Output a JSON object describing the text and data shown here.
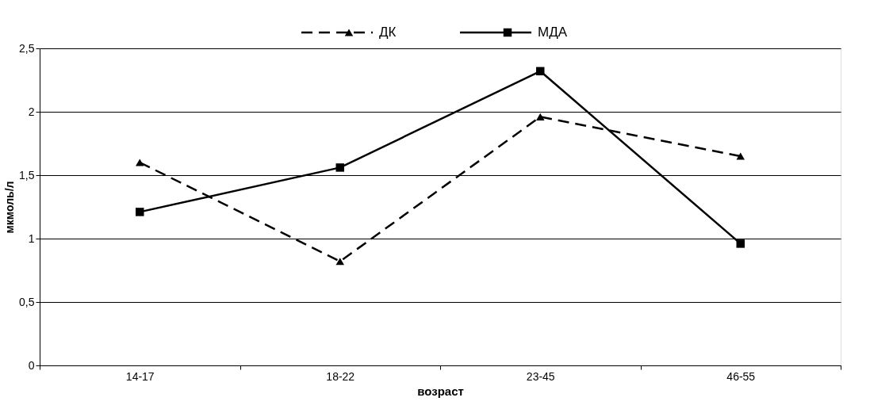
{
  "chart_data": {
    "type": "line",
    "xlabel": "возраст",
    "ylabel": "мкмоль/л",
    "categories": [
      "14-17",
      "18-22",
      "23-45",
      "46-55"
    ],
    "series": [
      {
        "name": "ДК",
        "color": "#000000",
        "values": [
          1.6,
          0.82,
          1.96,
          1.65
        ],
        "marker": "triangle",
        "line_style": "dashed"
      },
      {
        "name": "МДА",
        "color": "#000000",
        "values": [
          1.21,
          1.56,
          2.32,
          0.96
        ],
        "marker": "square",
        "line_style": "solid"
      }
    ],
    "ylim": [
      0,
      2.5
    ],
    "yticks": [
      0,
      {
        "value": 0.5,
        "label": "0,5"
      },
      1,
      {
        "value": 1.5,
        "label": "1,5"
      },
      2,
      {
        "value": 2.5,
        "label": "2,5"
      }
    ],
    "grid": "y",
    "legend": "top"
  }
}
